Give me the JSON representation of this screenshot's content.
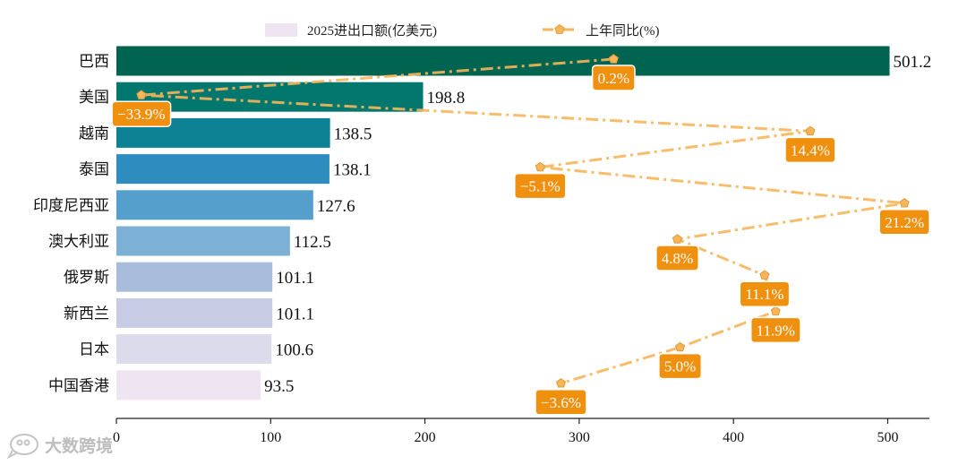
{
  "chart_data": {
    "type": "bar",
    "orientation": "horizontal",
    "categories": [
      "巴西",
      "美国",
      "越南",
      "泰国",
      "印度尼西亚",
      "澳大利亚",
      "俄罗斯",
      "新西兰",
      "日本",
      "中国香港"
    ],
    "series": [
      {
        "name": "2025进出口额(亿美元)",
        "type": "bar",
        "values": [
          501.2,
          198.8,
          138.5,
          138.1,
          127.6,
          112.5,
          101.1,
          101.1,
          100.6,
          93.5
        ],
        "value_labels": [
          "501.2",
          "198.8",
          "138.5",
          "138.1",
          "127.6",
          "112.5",
          "101.1",
          "101.1",
          "100.6",
          "93.5"
        ],
        "colors": [
          "#016450",
          "#02776e",
          "#0c8294",
          "#2e8dbe",
          "#559fcc",
          "#7cb0d5",
          "#a8bddc",
          "#c8cbe4",
          "#dcdbeb",
          "#efe5f2"
        ]
      },
      {
        "name": "上年同比(%)",
        "type": "line",
        "values": [
          0.2,
          -33.9,
          14.4,
          -5.1,
          21.2,
          4.8,
          11.1,
          11.9,
          5.0,
          -3.6
        ],
        "value_labels": [
          "0.2%",
          "−33.9%",
          "14.4%",
          "−5.1%",
          "21.2%",
          "4.8%",
          "11.1%",
          "11.9%",
          "5.0%",
          "−3.6%"
        ],
        "color": "#f7b55a",
        "label_color": "#f0900f"
      }
    ],
    "xlim": [
      0,
      527
    ],
    "xticks": [
      0,
      100,
      200,
      300,
      400,
      500
    ],
    "xtick_labels": [
      "0",
      "100",
      "200",
      "300",
      "400",
      "500"
    ],
    "growth_axis_range": [
      -35.7,
      23.0
    ],
    "legend": "top-center",
    "grid": false,
    "title": "",
    "xlabel": "",
    "ylabel": ""
  },
  "watermark": {
    "text": "大数跨境"
  }
}
